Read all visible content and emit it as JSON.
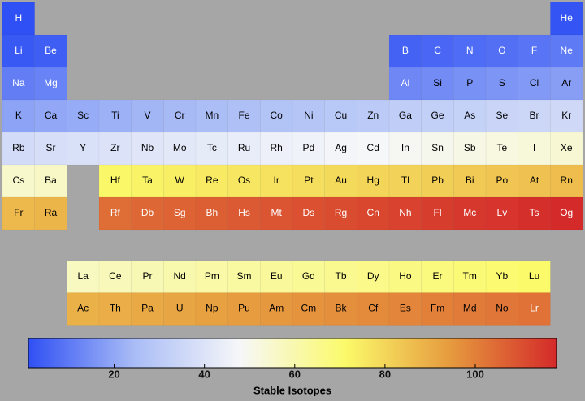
{
  "chart_data": {
    "type": "periodic-heatmap",
    "categories": [
      "H",
      "He",
      "Li",
      "Be",
      "B",
      "C",
      "N",
      "O",
      "F",
      "Ne",
      "Na",
      "Mg",
      "Al",
      "Si",
      "P",
      "S",
      "Cl",
      "Ar",
      "K",
      "Ca",
      "Sc",
      "Ti",
      "V",
      "Cr",
      "Mn",
      "Fe",
      "Co",
      "Ni",
      "Cu",
      "Zn",
      "Ga",
      "Ge",
      "As",
      "Se",
      "Br",
      "Kr",
      "Rb",
      "Sr",
      "Y",
      "Zr",
      "Nb",
      "Mo",
      "Tc",
      "Ru",
      "Rh",
      "Pd",
      "Ag",
      "Cd",
      "In",
      "Sn",
      "Sb",
      "Te",
      "I",
      "Xe",
      "Cs",
      "Ba",
      "La",
      "Ce",
      "Pr",
      "Nd",
      "Pm",
      "Sm",
      "Eu",
      "Gd",
      "Tb",
      "Dy",
      "Ho",
      "Er",
      "Tm",
      "Yb",
      "Lu",
      "Hf",
      "Ta",
      "W",
      "Re",
      "Os",
      "Ir",
      "Pt",
      "Au",
      "Hg",
      "Tl",
      "Pb",
      "Bi",
      "Po",
      "At",
      "Rn",
      "Fr",
      "Ra",
      "Ac",
      "Th",
      "Pa",
      "U",
      "Np",
      "Pu",
      "Am",
      "Cm",
      "Bk",
      "Cf",
      "Es",
      "Fm",
      "Md",
      "No",
      "Lr",
      "Rf",
      "Db",
      "Sg",
      "Bh",
      "Hs",
      "Mt",
      "Ds",
      "Rg",
      "Cn",
      "Nh",
      "Fl",
      "Mc",
      "Lv",
      "Ts",
      "Og"
    ],
    "values": [
      1,
      2,
      3,
      4,
      5,
      6,
      7,
      8,
      9,
      10,
      11,
      12,
      13,
      14,
      15,
      16,
      17,
      18,
      19,
      20,
      21,
      22,
      23,
      24,
      25,
      26,
      27,
      28,
      29,
      30,
      31,
      32,
      33,
      34,
      35,
      36,
      37,
      38,
      39,
      40,
      41,
      42,
      43,
      44,
      45,
      46,
      47,
      48,
      49,
      50,
      51,
      52,
      53,
      54,
      55,
      56,
      57,
      58,
      59,
      60,
      61,
      62,
      63,
      64,
      65,
      66,
      67,
      68,
      69,
      70,
      71,
      72,
      73,
      74,
      75,
      76,
      77,
      78,
      79,
      80,
      81,
      82,
      83,
      84,
      85,
      86,
      87,
      88,
      89,
      90,
      91,
      92,
      93,
      94,
      95,
      96,
      97,
      98,
      99,
      100,
      101,
      102,
      103,
      104,
      105,
      106,
      107,
      108,
      109,
      110,
      111,
      112,
      113,
      114,
      115,
      116,
      117,
      118
    ],
    "colorbar_label": "Stable Isotopes",
    "zlim": [
      1,
      118
    ],
    "zticks": [
      20,
      40,
      60,
      80,
      100
    ],
    "colormap": [
      "#2f50f4",
      "#a9bcf6",
      "#f6f7f9",
      "#fbfa6a",
      "#e69a3e",
      "#d42a2a"
    ]
  }
}
